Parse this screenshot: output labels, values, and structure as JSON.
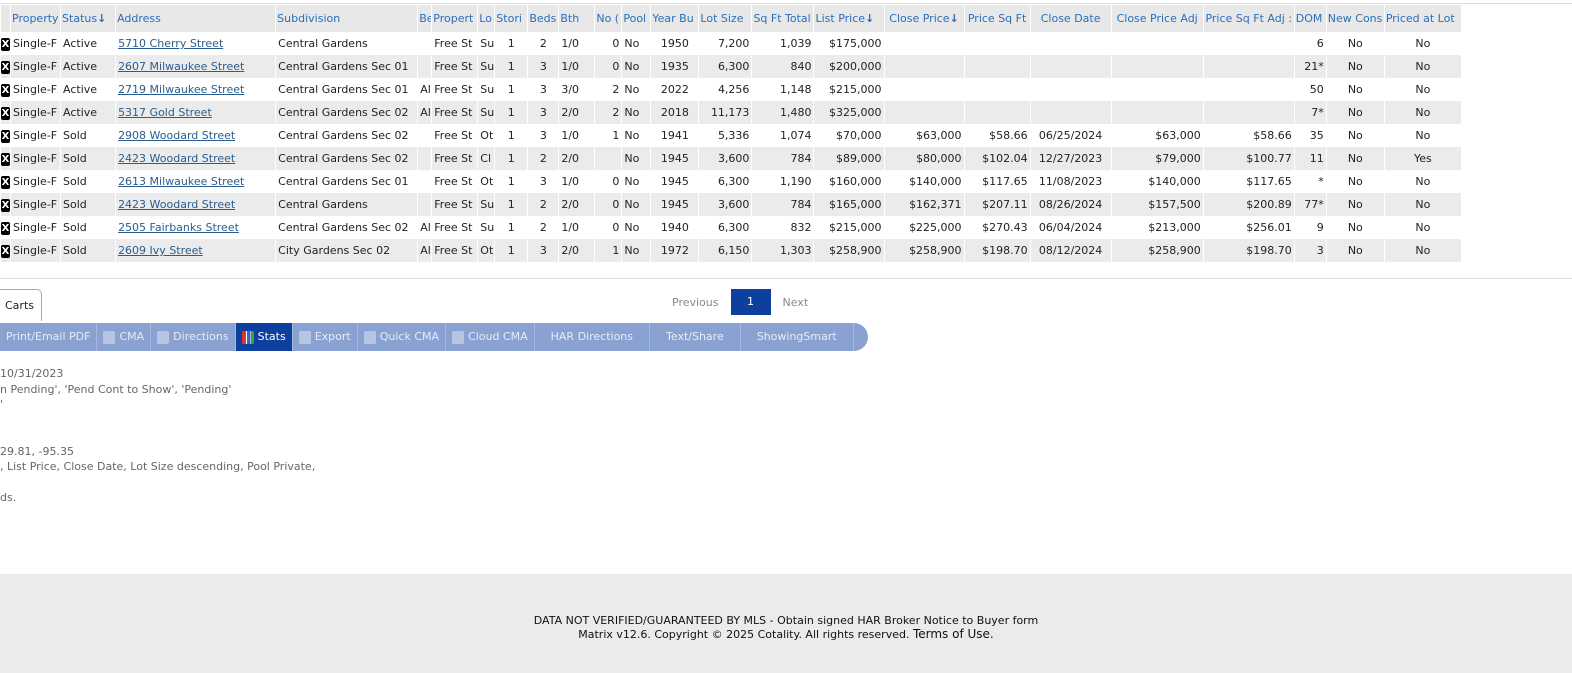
{
  "columns": [
    "",
    "Property",
    "Status",
    "Address",
    "Subdivision",
    "Be",
    "Propert",
    "Lo",
    "Stori",
    "Beds",
    "Bth",
    "No (",
    "Pool",
    "Year Bu",
    "Lot Size",
    "Sq Ft Total",
    "List Price",
    "Close Price",
    "Price Sq Ft",
    "Close Date",
    "Close Price Adj",
    "Price Sq Ft Adj :",
    "DOM",
    "New Cons",
    "Priced at Lot"
  ],
  "sort_arrow": "↓",
  "rows": [
    [
      "X",
      "Single-F",
      "Active",
      "5710 Cherry Street",
      "Central Gardens",
      "",
      "Free St",
      "Su",
      "1",
      "2",
      "1/0",
      "0",
      "No",
      "1950",
      "7,200",
      "1,039",
      "$175,000",
      "",
      "",
      "",
      "",
      "",
      "6",
      "No",
      "No"
    ],
    [
      "X",
      "Single-F",
      "Active",
      "2607 Milwaukee Street",
      "Central Gardens Sec 01",
      "",
      "Free St",
      "Su",
      "1",
      "3",
      "1/0",
      "0",
      "No",
      "1935",
      "6,300",
      "840",
      "$200,000",
      "",
      "",
      "",
      "",
      "",
      "21*",
      "No",
      "No"
    ],
    [
      "X",
      "Single-F",
      "Active",
      "2719 Milwaukee Street",
      "Central Gardens Sec 01",
      "Al",
      "Free St",
      "Su",
      "1",
      "3",
      "3/0",
      "2",
      "No",
      "2022",
      "4,256",
      "1,148",
      "$215,000",
      "",
      "",
      "",
      "",
      "",
      "50",
      "No",
      "No"
    ],
    [
      "X",
      "Single-F",
      "Active",
      "5317 Gold Street",
      "Central Gardens Sec 02",
      "Al",
      "Free St",
      "Su",
      "1",
      "3",
      "2/0",
      "2",
      "No",
      "2018",
      "11,173",
      "1,480",
      "$325,000",
      "",
      "",
      "",
      "",
      "",
      "7*",
      "No",
      "No"
    ],
    [
      "X",
      "Single-F",
      "Sold",
      "2908 Woodard Street",
      "Central Gardens Sec 02",
      "",
      "Free St",
      "Ot",
      "1",
      "3",
      "1/0",
      "1",
      "No",
      "1941",
      "5,336",
      "1,074",
      "$70,000",
      "$63,000",
      "$58.66",
      "06/25/2024",
      "$63,000",
      "$58.66",
      "35",
      "No",
      "No"
    ],
    [
      "X",
      "Single-F",
      "Sold",
      "2423 Woodard Street",
      "Central Gardens Sec 02",
      "",
      "Free St",
      "Cl",
      "1",
      "2",
      "2/0",
      "",
      "No",
      "1945",
      "3,600",
      "784",
      "$89,000",
      "$80,000",
      "$102.04",
      "12/27/2023",
      "$79,000",
      "$100.77",
      "11",
      "No",
      "Yes"
    ],
    [
      "X",
      "Single-F",
      "Sold",
      "2613 Milwaukee Street",
      "Central Gardens Sec 01",
      "",
      "Free St",
      "Ot",
      "1",
      "3",
      "1/0",
      "0",
      "No",
      "1945",
      "6,300",
      "1,190",
      "$160,000",
      "$140,000",
      "$117.65",
      "11/08/2023",
      "$140,000",
      "$117.65",
      "*",
      "No",
      "No"
    ],
    [
      "X",
      "Single-F",
      "Sold",
      "2423 Woodard Street",
      "Central Gardens",
      "",
      "Free St",
      "Su",
      "1",
      "2",
      "2/0",
      "0",
      "No",
      "1945",
      "3,600",
      "784",
      "$165,000",
      "$162,371",
      "$207.11",
      "08/26/2024",
      "$157,500",
      "$200.89",
      "77*",
      "No",
      "No"
    ],
    [
      "X",
      "Single-F",
      "Sold",
      "2505 Fairbanks Street",
      "Central Gardens Sec 02",
      "Al",
      "Free St",
      "Su",
      "1",
      "2",
      "1/0",
      "0",
      "No",
      "1940",
      "6,300",
      "832",
      "$215,000",
      "$225,000",
      "$270.43",
      "06/04/2024",
      "$213,000",
      "$256.01",
      "9",
      "No",
      "No"
    ],
    [
      "X",
      "Single-F",
      "Sold",
      "2609 Ivy Street",
      "City Gardens Sec 02",
      "Al",
      "Free St",
      "Ot",
      "1",
      "3",
      "2/0",
      "1",
      "No",
      "1972",
      "6,150",
      "1,303",
      "$258,900",
      "$258,900",
      "$198.70",
      "08/12/2024",
      "$258,900",
      "$198.70",
      "3",
      "No",
      "No"
    ]
  ],
  "tab_label": "Carts",
  "pager": {
    "previous": "Previous",
    "current": "1",
    "next": "Next"
  },
  "toolbar": [
    {
      "label": "Print/Email PDF",
      "icon": ""
    },
    {
      "label": "CMA",
      "icon": "document-icon"
    },
    {
      "label": "Directions",
      "icon": "compass-icon"
    },
    {
      "label": "Stats",
      "icon": "bar-chart-icon",
      "active": true
    },
    {
      "label": "Export",
      "icon": "export-icon"
    },
    {
      "label": "Quick CMA",
      "icon": "quick-cma-icon"
    },
    {
      "label": "Cloud CMA",
      "icon": "document-icon"
    },
    {
      "label": "HAR Directions",
      "icon": ""
    },
    {
      "label": "Text/Share",
      "icon": ""
    },
    {
      "label": "ShowingSmart",
      "icon": ""
    }
  ],
  "info_lines": [
    "10/31/2023",
    "n Pending', 'Pend Cont to Show', 'Pending'",
    "'",
    "",
    "",
    "29.81, -95.35",
    ", List Price, Close Date, Lot Size descending, Pool Private,",
    "",
    "ds."
  ],
  "footer": {
    "line1": "DATA NOT VERIFIED/GUARANTEED BY MLS - Obtain signed HAR Broker Notice to Buyer form",
    "line2": "Matrix v12.6. Copyright © 2025 Cotality. All rights reserved.",
    "terms": "Terms of Use."
  },
  "colors": {
    "header_text": "#2a6ebb",
    "toolbar": "#8aa2d2",
    "active": "#0d3f9e"
  }
}
